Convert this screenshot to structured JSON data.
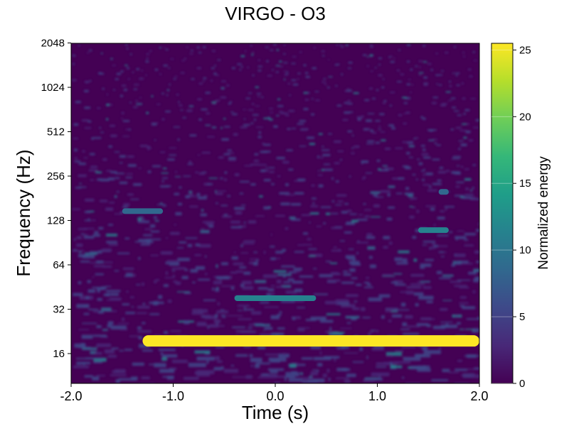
{
  "chart_data": {
    "type": "heatmap",
    "title": "VIRGO - O3",
    "xlabel": "Time (s)",
    "ylabel": "Frequency (Hz)",
    "xlim": [
      -2.0,
      2.0
    ],
    "ylim": [
      10,
      2048
    ],
    "y_scale": "log2",
    "x_ticks": [
      "-2.0",
      "-1.0",
      "0.0",
      "1.0",
      "2.0"
    ],
    "x_tick_values": [
      -2.0,
      -1.0,
      0.0,
      1.0,
      2.0
    ],
    "y_ticks": [
      "16",
      "32",
      "64",
      "128",
      "256",
      "512",
      "1024",
      "2048"
    ],
    "y_tick_values": [
      16,
      32,
      64,
      128,
      256,
      512,
      1024,
      2048
    ],
    "colorbar": {
      "label": "Normalized energy",
      "range": [
        0,
        25.5
      ],
      "ticks": [
        "0",
        "5",
        "10",
        "15",
        "20",
        "25"
      ],
      "tick_values": [
        0,
        5,
        10,
        15,
        20,
        25
      ],
      "colormap": "viridis",
      "colors": [
        "#440154",
        "#482878",
        "#3e4989",
        "#31688e",
        "#26828e",
        "#1f9e89",
        "#35b779",
        "#6ece58",
        "#b5de2b",
        "#fde725"
      ]
    },
    "features": [
      {
        "t_start": -1.3,
        "t_end": 2.0,
        "freq": 19.5,
        "energy": 25
      },
      {
        "t_start": -0.4,
        "t_end": 0.4,
        "freq": 38,
        "energy": 10
      },
      {
        "t_start": -1.5,
        "t_end": -1.1,
        "freq": 148,
        "energy": 9
      },
      {
        "t_start": 1.4,
        "t_end": 1.7,
        "freq": 110,
        "energy": 10
      },
      {
        "t_start": 1.6,
        "t_end": 1.7,
        "freq": 200,
        "energy": 9
      }
    ]
  }
}
